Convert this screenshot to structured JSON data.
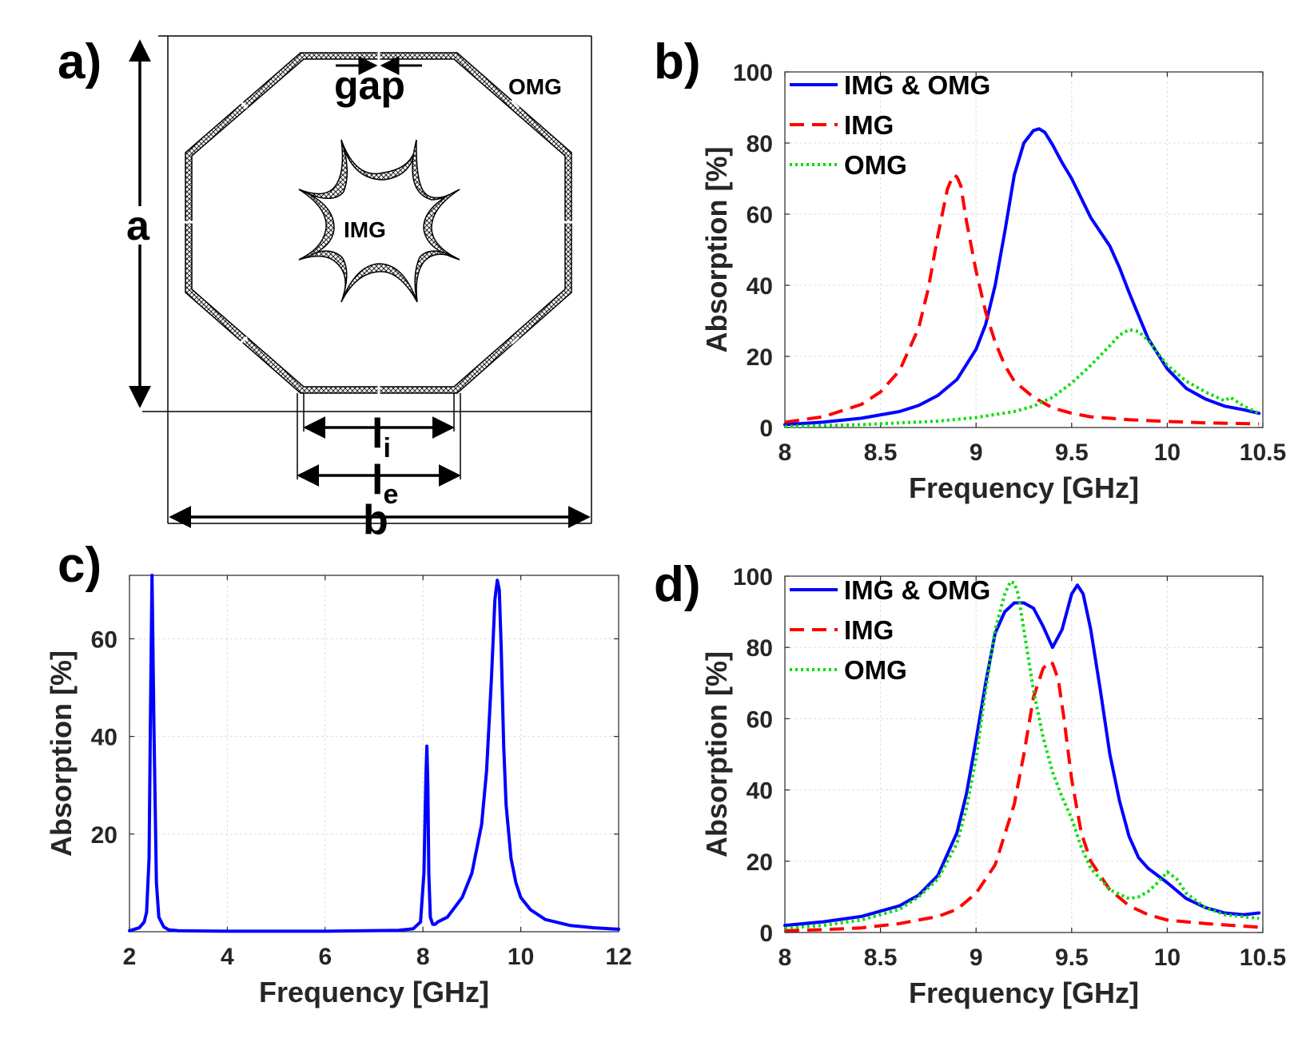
{
  "panel_labels": {
    "a": "a)",
    "b": "b)",
    "c": "c)",
    "d": "d)"
  },
  "diagram": {
    "gap_label": "gap",
    "omg_label": "OMG",
    "img_label": "IMG",
    "a_label": "a",
    "b_label": "b",
    "li_main": "l",
    "li_sub": "i",
    "le_main": "l",
    "le_sub": "e"
  },
  "chart_data": [
    {
      "id": "b",
      "type": "line",
      "xlabel": "Frequency [GHz]",
      "ylabel": "Absorption [%]",
      "xlim": [
        8,
        10.5
      ],
      "ylim": [
        0,
        100
      ],
      "xticks": [
        8,
        8.5,
        9,
        9.5,
        10,
        10.5
      ],
      "xtick_labels": [
        "8",
        "8.5",
        "9",
        "9.5",
        "10",
        "10.5"
      ],
      "yticks": [
        0,
        20,
        40,
        60,
        80,
        100
      ],
      "ytick_labels": [
        "0",
        "20",
        "40",
        "60",
        "80",
        "100"
      ],
      "grid": true,
      "legend": "top-left",
      "series": [
        {
          "name": "IMG & OMG",
          "color": "#0000ff",
          "style": "solid",
          "x": [
            8.0,
            8.2,
            8.4,
            8.6,
            8.7,
            8.8,
            8.9,
            9.0,
            9.05,
            9.1,
            9.15,
            9.2,
            9.25,
            9.3,
            9.33,
            9.36,
            9.4,
            9.45,
            9.5,
            9.55,
            9.6,
            9.65,
            9.7,
            9.75,
            9.8,
            9.85,
            9.9,
            10.0,
            10.1,
            10.2,
            10.3,
            10.4,
            10.48
          ],
          "y": [
            0.8,
            1.5,
            2.6,
            4.5,
            6.2,
            9,
            13.5,
            22,
            29,
            40,
            55,
            71,
            80,
            83.5,
            84,
            83,
            79.5,
            74.5,
            70,
            64.5,
            59,
            55,
            51,
            45,
            38,
            31.5,
            25,
            16.5,
            11,
            8,
            6,
            5,
            4
          ]
        },
        {
          "name": "IMG",
          "color": "#ff0000",
          "style": "dashed",
          "x": [
            8.0,
            8.2,
            8.4,
            8.5,
            8.6,
            8.7,
            8.75,
            8.8,
            8.85,
            8.88,
            8.9,
            8.92,
            8.95,
            9.0,
            9.05,
            9.1,
            9.15,
            9.2,
            9.3,
            9.4,
            9.5,
            9.6,
            9.8,
            10.0,
            10.2,
            10.48
          ],
          "y": [
            1.5,
            3,
            6.5,
            10,
            16,
            28,
            39,
            54,
            67,
            71,
            70.5,
            68,
            58,
            44,
            32.5,
            24,
            17.5,
            13,
            8.5,
            5.5,
            4,
            3,
            2.2,
            1.7,
            1.3,
            1
          ]
        },
        {
          "name": "OMG",
          "color": "#00e000",
          "style": "dotted",
          "x": [
            8.0,
            8.4,
            8.8,
            9.0,
            9.2,
            9.3,
            9.4,
            9.5,
            9.6,
            9.7,
            9.75,
            9.8,
            9.85,
            9.9,
            9.95,
            10.0,
            10.1,
            10.2,
            10.3,
            10.33,
            10.4,
            10.48
          ],
          "y": [
            0.3,
            0.8,
            1.8,
            2.8,
            4.5,
            6,
            8.5,
            12.5,
            17.5,
            23,
            26,
            27.5,
            27,
            24.5,
            21,
            17.5,
            13,
            10,
            7.5,
            8.5,
            6,
            4
          ]
        }
      ]
    },
    {
      "id": "c",
      "type": "line",
      "xlabel": "Frequency [GHz]",
      "ylabel": "Absorption [%]",
      "xlim": [
        2,
        12
      ],
      "ylim": [
        0,
        73
      ],
      "xticks": [
        2,
        4,
        6,
        8,
        10,
        12
      ],
      "xtick_labels": [
        "2",
        "4",
        "6",
        "8",
        "10",
        "12"
      ],
      "yticks": [
        20,
        40,
        60
      ],
      "ytick_labels": [
        "20",
        "40",
        "60"
      ],
      "grid": true,
      "series": [
        {
          "name": "absorption",
          "color": "#0000ff",
          "style": "solid",
          "x": [
            2.0,
            2.2,
            2.3,
            2.35,
            2.4,
            2.43,
            2.46,
            2.5,
            2.55,
            2.6,
            2.7,
            2.8,
            3.0,
            4.0,
            6.0,
            7.5,
            7.8,
            7.95,
            8.02,
            8.06,
            8.08,
            8.1,
            8.12,
            8.15,
            8.2,
            8.25,
            8.3,
            8.5,
            8.8,
            9.0,
            9.2,
            9.3,
            9.4,
            9.47,
            9.52,
            9.56,
            9.6,
            9.65,
            9.7,
            9.8,
            9.9,
            10.0,
            10.2,
            10.5,
            11.0,
            11.5,
            12.0
          ],
          "y": [
            0.2,
            0.8,
            2,
            4,
            15,
            45,
            73,
            42,
            10,
            3,
            1,
            0.4,
            0.2,
            0.1,
            0.1,
            0.3,
            0.6,
            2,
            12,
            32,
            38,
            30,
            12,
            3,
            1.5,
            1.5,
            2,
            3,
            7,
            12,
            22,
            33,
            52,
            68,
            72,
            70,
            58,
            38,
            26,
            15,
            10,
            7,
            4.5,
            2.5,
            1.3,
            0.8,
            0.5
          ]
        }
      ]
    },
    {
      "id": "d",
      "type": "line",
      "xlabel": "Frequency [GHz]",
      "ylabel": "Absorption [%]",
      "xlim": [
        8,
        10.5
      ],
      "ylim": [
        0,
        100
      ],
      "xticks": [
        8,
        8.5,
        9,
        9.5,
        10,
        10.5
      ],
      "xtick_labels": [
        "8",
        "8.5",
        "9",
        "9.5",
        "10",
        "10.5"
      ],
      "yticks": [
        0,
        20,
        40,
        60,
        80,
        100
      ],
      "ytick_labels": [
        "0",
        "20",
        "40",
        "60",
        "80",
        "100"
      ],
      "grid": true,
      "legend": "top-left",
      "series": [
        {
          "name": "IMG & OMG",
          "color": "#0000ff",
          "style": "solid",
          "x": [
            8.0,
            8.2,
            8.4,
            8.6,
            8.7,
            8.8,
            8.9,
            8.95,
            9.0,
            9.05,
            9.1,
            9.15,
            9.2,
            9.25,
            9.3,
            9.35,
            9.4,
            9.45,
            9.5,
            9.53,
            9.56,
            9.6,
            9.65,
            9.7,
            9.75,
            9.8,
            9.85,
            9.9,
            9.95,
            10.0,
            10.1,
            10.2,
            10.3,
            10.4,
            10.48
          ],
          "y": [
            2,
            3,
            4.5,
            7.5,
            10.5,
            16,
            28,
            39,
            54,
            70,
            84,
            90,
            92.5,
            92.5,
            91,
            86,
            80,
            85,
            95,
            97.5,
            95,
            85,
            68,
            50,
            37,
            27,
            21,
            18,
            16,
            14,
            9.5,
            7,
            5.5,
            5,
            5.5
          ]
        },
        {
          "name": "IMG",
          "color": "#ff0000",
          "style": "dashed",
          "x": [
            8.0,
            8.2,
            8.4,
            8.6,
            8.8,
            8.9,
            9.0,
            9.1,
            9.2,
            9.25,
            9.3,
            9.35,
            9.38,
            9.4,
            9.43,
            9.46,
            9.5,
            9.55,
            9.6,
            9.7,
            9.8,
            9.9,
            10.0,
            10.2,
            10.48
          ],
          "y": [
            0.5,
            0.8,
            1.3,
            2.5,
            4.5,
            6.5,
            11,
            19,
            36,
            50,
            66,
            74,
            76,
            75.5,
            71,
            60,
            43,
            28,
            20,
            12,
            7.5,
            5,
            3.5,
            2.5,
            1.5
          ]
        },
        {
          "name": "OMG",
          "color": "#00e000",
          "style": "dotted",
          "x": [
            8.0,
            8.2,
            8.4,
            8.6,
            8.7,
            8.8,
            8.9,
            8.95,
            9.0,
            9.05,
            9.1,
            9.15,
            9.18,
            9.2,
            9.22,
            9.25,
            9.3,
            9.35,
            9.4,
            9.45,
            9.5,
            9.55,
            9.6,
            9.7,
            9.8,
            9.85,
            9.9,
            9.95,
            10.0,
            10.05,
            10.1,
            10.2,
            10.3,
            10.48
          ],
          "y": [
            1.2,
            2,
            3.5,
            6.5,
            10,
            15,
            25,
            35,
            49,
            68,
            85,
            95,
            98.5,
            98,
            95,
            85,
            68,
            55,
            45,
            38,
            32,
            24,
            18,
            12,
            9.5,
            10,
            11.5,
            14,
            17,
            15,
            11,
            7,
            5,
            4
          ]
        }
      ]
    }
  ]
}
